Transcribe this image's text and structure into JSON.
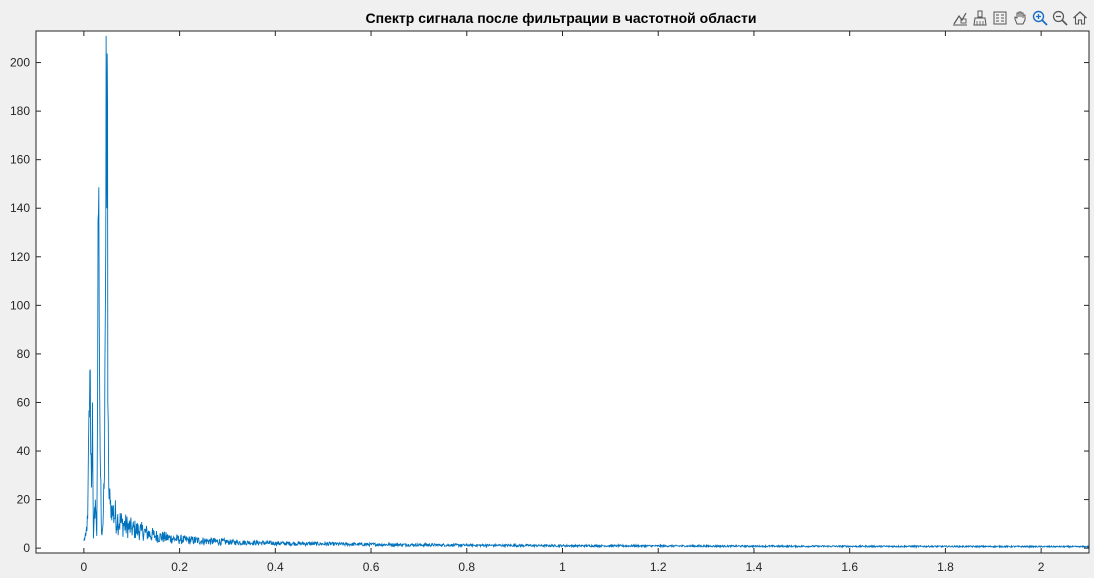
{
  "chart_data": {
    "type": "line",
    "title": "Спектр сигнала после фильтрации в частотной области",
    "xlabel": "",
    "ylabel": "",
    "xlim": [
      -0.1,
      2.1
    ],
    "ylim": [
      -2,
      213
    ],
    "x_ticks": [
      0,
      0.2,
      0.4,
      0.6,
      0.8,
      1,
      1.2,
      1.4,
      1.6,
      1.8,
      2
    ],
    "x_tick_labels": [
      "0",
      "0.2",
      "0.4",
      "0.6",
      "0.8",
      "1",
      "1.2",
      "1.4",
      "1.6",
      "1.8",
      "2"
    ],
    "y_ticks": [
      0,
      20,
      40,
      60,
      80,
      100,
      120,
      140,
      160,
      180,
      200
    ],
    "y_tick_labels": [
      "0",
      "20",
      "40",
      "60",
      "80",
      "100",
      "120",
      "140",
      "160",
      "180",
      "200"
    ],
    "grid": false,
    "line_color": "#0072bd",
    "series": [
      {
        "x": [
          0,
          0.004,
          0.008,
          0.0125,
          0.016,
          0.018,
          0.02,
          0.024,
          0.027,
          0.0305,
          0.032,
          0.034,
          0.037,
          0.04,
          0.043,
          0.045,
          0.0465,
          0.048,
          0.0495,
          0.05,
          0.052,
          0.055,
          0.06,
          0.07,
          0.08,
          0.1,
          0.12,
          0.15,
          0.2,
          0.3,
          0.4,
          0.6,
          0.8,
          1.0,
          1.4,
          1.8,
          2.1
        ],
        "y": [
          3,
          5,
          12,
          73,
          25,
          60,
          4,
          20,
          5,
          138,
          98,
          40,
          6,
          10,
          30,
          100,
          211,
          140,
          183,
          60,
          25,
          18,
          15,
          12,
          10,
          8,
          7,
          5,
          3.5,
          2.5,
          2,
          1.5,
          1.2,
          1,
          0.8,
          0.7,
          0.6
        ]
      }
    ]
  },
  "toolbar": [
    {
      "name": "data-tips-icon"
    },
    {
      "name": "brush-icon"
    },
    {
      "name": "legend-icon"
    },
    {
      "name": "pan-icon"
    },
    {
      "name": "zoom-in-icon"
    },
    {
      "name": "zoom-out-icon"
    },
    {
      "name": "home-icon"
    }
  ]
}
